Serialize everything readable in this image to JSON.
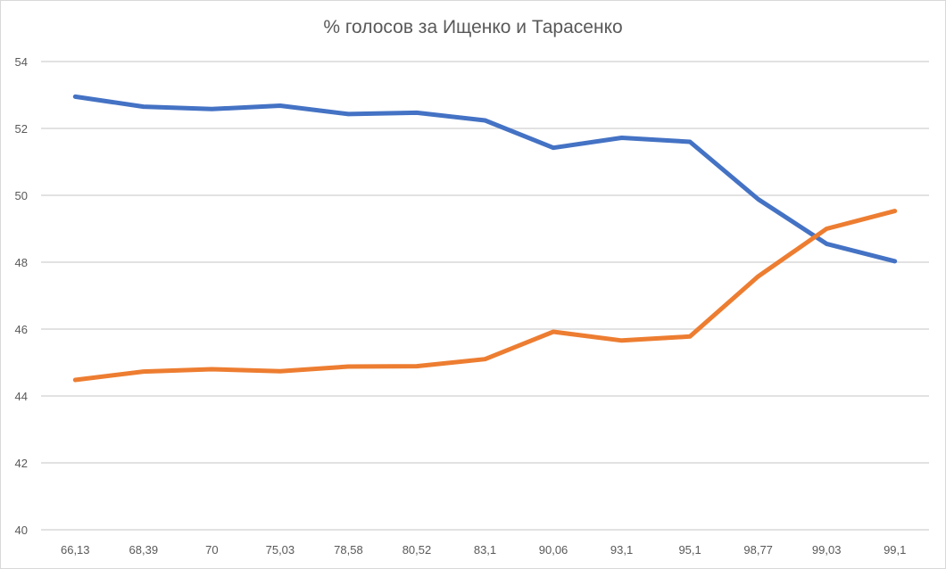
{
  "chart_data": {
    "type": "line",
    "title": "% голосов за Ищенко и Тарасенко",
    "xlabel": "",
    "ylabel": "",
    "categories": [
      "66,13",
      "68,39",
      "70",
      "75,03",
      "78,58",
      "80,52",
      "83,1",
      "90,06",
      "93,1",
      "95,1",
      "98,77",
      "99,03",
      "99,1"
    ],
    "ylim": [
      40,
      54
    ],
    "yticks": [
      "40",
      "42",
      "44",
      "46",
      "48",
      "50",
      "52",
      "54"
    ],
    "grid": true,
    "legend": "none",
    "series": [
      {
        "color": "#4472c4",
        "values": [
          52.95,
          52.65,
          52.58,
          52.68,
          52.43,
          52.47,
          52.24,
          51.42,
          51.72,
          51.6,
          49.88,
          48.55,
          48.03
        ]
      },
      {
        "color": "#ed7d31",
        "values": [
          44.48,
          44.73,
          44.8,
          44.74,
          44.88,
          44.89,
          45.1,
          45.92,
          45.66,
          45.78,
          47.58,
          49.0,
          49.53
        ]
      }
    ]
  }
}
